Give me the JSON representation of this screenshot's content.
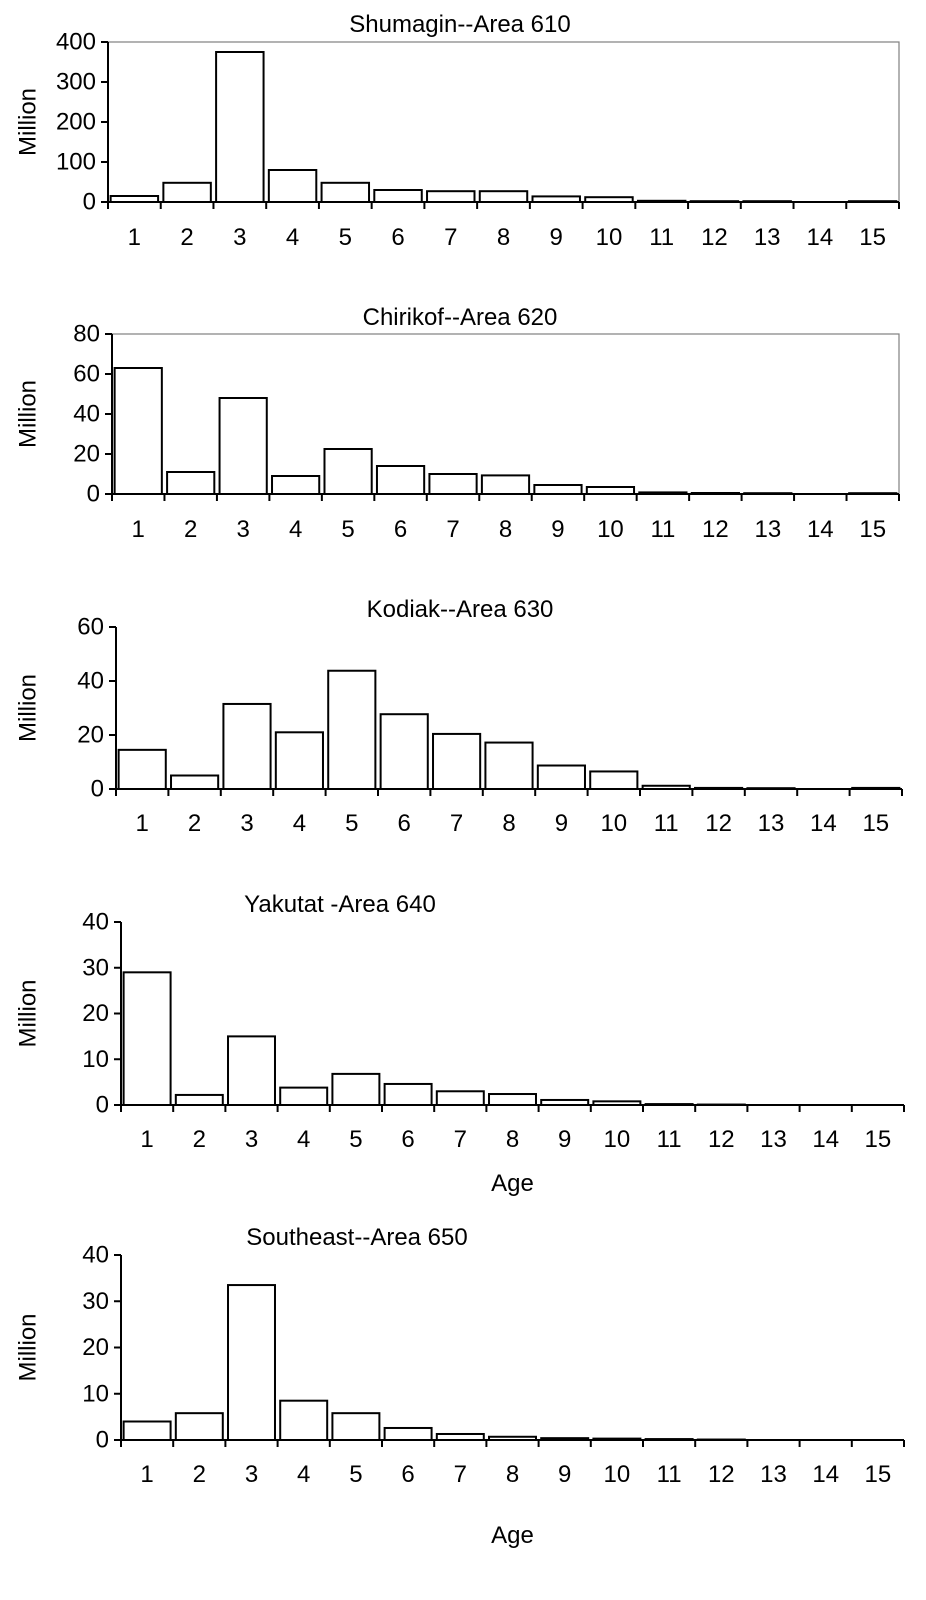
{
  "chart_data": [
    {
      "type": "bar",
      "title": "Shumagin--Area 610",
      "ylabel": "Million",
      "xlabel": "",
      "ylim": [
        0,
        400
      ],
      "yticks": [
        0,
        100,
        200,
        300,
        400
      ],
      "categories": [
        "1",
        "2",
        "3",
        "4",
        "5",
        "6",
        "7",
        "8",
        "9",
        "10",
        "11",
        "12",
        "13",
        "14",
        "15"
      ],
      "values": [
        15,
        48,
        375,
        80,
        48,
        30,
        27,
        27,
        14,
        12,
        3,
        2,
        2,
        0,
        2
      ],
      "frame": true
    },
    {
      "type": "bar",
      "title": "Chirikof--Area 620",
      "ylabel": "Million",
      "xlabel": "",
      "ylim": [
        0,
        80
      ],
      "yticks": [
        0,
        20,
        40,
        60,
        80
      ],
      "categories": [
        "1",
        "2",
        "3",
        "4",
        "5",
        "6",
        "7",
        "8",
        "9",
        "10",
        "11",
        "12",
        "13",
        "14",
        "15"
      ],
      "values": [
        63,
        11,
        48,
        9,
        22.5,
        14,
        10,
        9.3,
        4.5,
        3.5,
        0.8,
        0.5,
        0.4,
        0,
        0.4
      ],
      "frame": true
    },
    {
      "type": "bar",
      "title": "Kodiak--Area 630",
      "ylabel": "Million",
      "xlabel": "",
      "ylim": [
        0,
        60
      ],
      "yticks": [
        0,
        20,
        40,
        60
      ],
      "categories": [
        "1",
        "2",
        "3",
        "4",
        "5",
        "6",
        "7",
        "8",
        "9",
        "10",
        "11",
        "12",
        "13",
        "14",
        "15"
      ],
      "values": [
        14.5,
        5,
        31.5,
        21,
        43.8,
        27.7,
        20.4,
        17.2,
        8.7,
        6.5,
        1.2,
        0.4,
        0.3,
        0,
        0.4
      ],
      "frame": false
    },
    {
      "type": "bar",
      "title": "Yakutat -Area 640",
      "ylabel": "Million",
      "xlabel": "Age",
      "ylim": [
        0,
        40
      ],
      "yticks": [
        0,
        10,
        20,
        30,
        40
      ],
      "categories": [
        "1",
        "2",
        "3",
        "4",
        "5",
        "6",
        "7",
        "8",
        "9",
        "10",
        "11",
        "12",
        "13",
        "14",
        "15"
      ],
      "values": [
        29,
        2.2,
        15,
        3.8,
        6.8,
        4.6,
        3,
        2.4,
        1.1,
        0.8,
        0.2,
        0.1,
        0,
        0,
        0
      ],
      "frame": false
    },
    {
      "type": "bar",
      "title": "Southeast--Area 650",
      "ylabel": "Million",
      "xlabel": "Age",
      "ylim": [
        0,
        40
      ],
      "yticks": [
        0,
        10,
        20,
        30,
        40
      ],
      "categories": [
        "1",
        "2",
        "3",
        "4",
        "5",
        "6",
        "7",
        "8",
        "9",
        "10",
        "11",
        "12",
        "13",
        "14",
        "15"
      ],
      "values": [
        4,
        5.8,
        33.5,
        8.5,
        5.8,
        2.6,
        1.3,
        0.7,
        0.4,
        0.3,
        0.2,
        0.1,
        0,
        0,
        0
      ],
      "frame": false
    }
  ]
}
